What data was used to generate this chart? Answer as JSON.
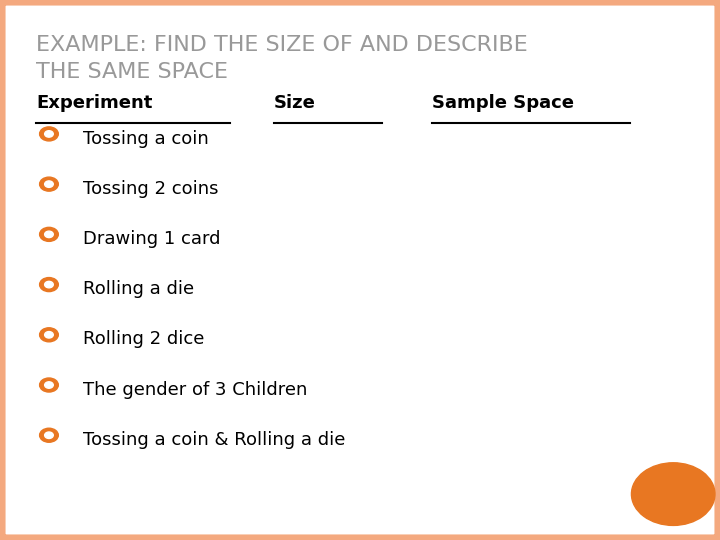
{
  "title_line1": "EXAMPLE: FIND THE SIZE OF AND DESCRIBE",
  "title_line2": "THE SAME SPACE",
  "title_color": "#999999",
  "header_experiment": "Experiment",
  "header_size": "Size",
  "header_sample_space": "Sample Space",
  "header_color": "#000000",
  "header_fontsize": 13,
  "bullet_items": [
    "Tossing a coin",
    "Tossing 2 coins",
    "Drawing 1 card",
    "Rolling a die",
    "Rolling 2 dice",
    "The gender of 3 Children",
    "Tossing a coin & Rolling a die"
  ],
  "bullet_color": "#E87722",
  "bullet_text_color": "#000000",
  "bullet_fontsize": 13,
  "background_color": "#FFFFFF",
  "border_color": "#F4A97F",
  "circle_color": "#E87722",
  "title_fontsize": 16
}
